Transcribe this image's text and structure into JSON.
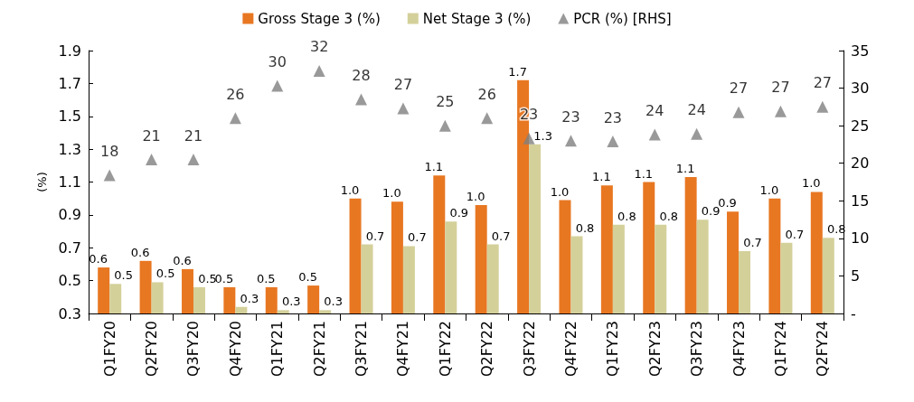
{
  "chart_data": {
    "type": "bar",
    "ylabel": "(%)",
    "categories": [
      "Q1FY20",
      "Q2FY20",
      "Q3FY20",
      "Q4FY20",
      "Q1FY21",
      "Q2FY21",
      "Q3FY21",
      "Q4FY21",
      "Q1FY22",
      "Q2FY22",
      "Q3FY22",
      "Q4FY22",
      "Q1FY23",
      "Q2FY23",
      "Q3FY23",
      "Q4FY23",
      "Q1FY24",
      "Q2FY24"
    ],
    "series": [
      {
        "name": "Gross Stage 3 (%)",
        "type": "bar",
        "color": "#e87722",
        "values": [
          0.58,
          0.62,
          0.57,
          0.46,
          0.46,
          0.47,
          1.0,
          0.98,
          1.14,
          0.96,
          1.72,
          0.99,
          1.08,
          1.1,
          1.13,
          0.92,
          1.0,
          1.04
        ],
        "value_labels": [
          "0.6",
          "0.6",
          "0.6",
          "0.5",
          "0.5",
          "0.5",
          "1.0",
          "1.0",
          "1.1",
          "1.0",
          "1.7",
          "1.0",
          "1.1",
          "1.1",
          "1.1",
          "0.9",
          "1.0",
          "1.0"
        ]
      },
      {
        "name": "Net Stage 3 (%)",
        "type": "bar",
        "color": "#d4d09a",
        "values": [
          0.48,
          0.49,
          0.46,
          0.34,
          0.32,
          0.32,
          0.72,
          0.71,
          0.86,
          0.72,
          1.33,
          0.77,
          0.84,
          0.84,
          0.87,
          0.68,
          0.73,
          0.76
        ],
        "value_labels": [
          "0.5",
          "0.5",
          "0.5",
          "0.3",
          "0.3",
          "0.3",
          "0.7",
          "0.7",
          "0.9",
          "0.7",
          "1.3",
          "0.8",
          "0.8",
          "0.8",
          "0.9",
          "0.7",
          "0.7",
          "0.8"
        ]
      },
      {
        "name": "PCR (%) [RHS]",
        "type": "scatter",
        "axis": "y2",
        "marker": "triangle",
        "color": "#7f7f7f",
        "values": [
          18.4,
          20.5,
          20.5,
          26,
          30.3,
          32.3,
          28.5,
          27.3,
          25,
          26,
          23.3,
          23,
          22.9,
          23.8,
          23.9,
          26.8,
          26.9,
          27.5
        ],
        "value_labels": [
          "18",
          "21",
          "21",
          "26",
          "30",
          "32",
          "28",
          "27",
          "25",
          "26",
          "23",
          "23",
          "23",
          "24",
          "24",
          "27",
          "27",
          "27"
        ]
      }
    ],
    "ylim": [
      0.3,
      1.9
    ],
    "yticks": [
      0.3,
      0.5,
      0.7,
      0.9,
      1.1,
      1.3,
      1.5,
      1.7,
      1.9
    ],
    "y2lim": [
      0,
      35
    ],
    "y2ticks": [
      {
        "value": 0,
        "label": "-"
      },
      5,
      10,
      15,
      20,
      25,
      30,
      35
    ],
    "grid": false,
    "legend": "top"
  }
}
